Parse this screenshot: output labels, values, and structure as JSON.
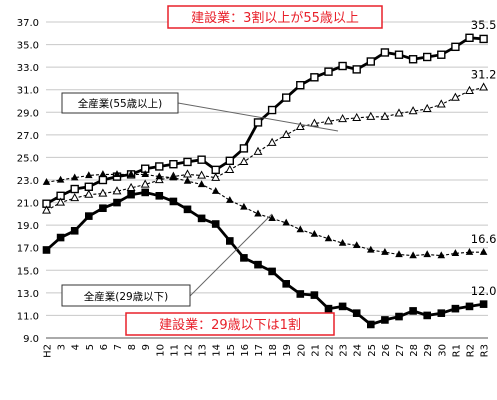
{
  "chart_data": {
    "type": "line",
    "title": "",
    "xlabel": "",
    "ylabel": "",
    "categories": [
      "H2",
      "3",
      "4",
      "5",
      "6",
      "7",
      "8",
      "9",
      "10",
      "11",
      "12",
      "13",
      "14",
      "15",
      "16",
      "17",
      "18",
      "19",
      "20",
      "21",
      "22",
      "23",
      "24",
      "25",
      "26",
      "27",
      "28",
      "29",
      "30",
      "R1",
      "R2",
      "R3"
    ],
    "ylim": [
      9.0,
      37.0
    ],
    "yticks": [
      "9.0",
      "11.0",
      "13.0",
      "15.0",
      "17.0",
      "19.0",
      "21.0",
      "23.0",
      "25.0",
      "27.0",
      "29.0",
      "31.0",
      "33.0",
      "35.0",
      "37.0"
    ],
    "grid": true,
    "series": [
      {
        "name": "",
        "key": "const55",
        "style": "solid-open-square",
        "values": [
          20.9,
          21.6,
          22.2,
          22.4,
          23.0,
          23.3,
          23.5,
          24.0,
          24.2,
          24.4,
          24.6,
          24.8,
          23.9,
          24.7,
          25.8,
          28.1,
          29.2,
          30.3,
          31.4,
          32.1,
          32.6,
          33.1,
          32.8,
          33.5,
          34.3,
          34.1,
          33.7,
          33.9,
          34.1,
          34.8,
          35.6,
          35.5
        ]
      },
      {
        "name": "全産業(55歳以上)",
        "key": "all55",
        "style": "dashed-open-triangle",
        "values": [
          20.3,
          21.0,
          21.4,
          21.7,
          21.8,
          22.0,
          22.3,
          22.6,
          23.0,
          23.3,
          23.5,
          23.4,
          23.2,
          23.9,
          24.6,
          25.5,
          26.3,
          27.0,
          27.7,
          28.0,
          28.2,
          28.4,
          28.5,
          28.6,
          28.6,
          28.9,
          29.1,
          29.3,
          29.7,
          30.3,
          30.9,
          31.2
        ]
      },
      {
        "name": "全産業(29歳以下)",
        "key": "all29",
        "style": "dashed-solid-triangle",
        "values": [
          22.8,
          23.0,
          23.2,
          23.4,
          23.5,
          23.5,
          23.5,
          23.5,
          23.3,
          23.2,
          22.9,
          22.6,
          22.0,
          21.2,
          20.6,
          20.0,
          19.6,
          19.2,
          18.6,
          18.2,
          17.8,
          17.4,
          17.2,
          16.8,
          16.6,
          16.4,
          16.3,
          16.4,
          16.3,
          16.5,
          16.6,
          16.6
        ]
      },
      {
        "name": "",
        "key": "const29",
        "style": "solid-filled-square",
        "values": [
          16.8,
          17.9,
          18.5,
          19.8,
          20.5,
          21.0,
          21.7,
          21.9,
          21.6,
          21.1,
          20.4,
          19.6,
          19.1,
          17.6,
          16.1,
          15.5,
          14.9,
          13.8,
          12.9,
          12.8,
          11.6,
          11.8,
          11.2,
          10.2,
          10.6,
          10.9,
          11.4,
          11.0,
          11.2,
          11.6,
          11.8,
          12.0
        ]
      }
    ],
    "end_labels": {
      "const55": "35.5",
      "all55": "31.2",
      "all29": "16.6",
      "const29": "12.0"
    },
    "annotations": {
      "top_box": "建設業：3割以上が55歳以上",
      "bottom_box": "建設業：29歳以下は1割",
      "label_55": "全産業(55歳以上)",
      "label_29": "全産業(29歳以下)"
    },
    "colors": {
      "line": "#000000",
      "grid": "#c8c8c8",
      "accent_red": "#e8202a"
    }
  }
}
